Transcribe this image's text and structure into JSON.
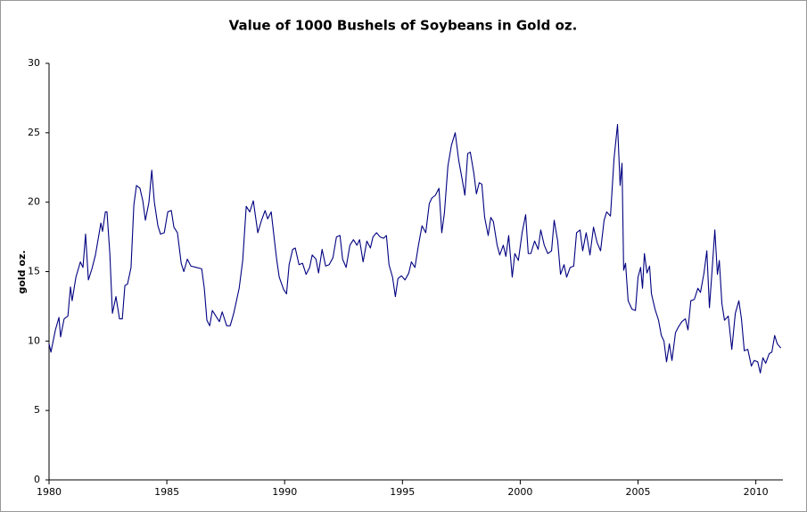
{
  "chart_data": {
    "type": "line",
    "title": "Value of 1000 Bushels of Soybeans in Gold oz.",
    "y_label": "gold oz.",
    "xlim": [
      1980,
      2011.15
    ],
    "xticks": [
      1980,
      1985,
      1990,
      1995,
      2000,
      2005,
      2010
    ],
    "ylim": [
      0,
      30
    ],
    "yticks": [
      0,
      5,
      10,
      15,
      20,
      25,
      30
    ],
    "grid": false,
    "series": [
      {
        "name": "Soybeans in gold",
        "color": "#000080",
        "x": [
          1980.0,
          1980.08,
          1980.27,
          1980.42,
          1980.49,
          1980.64,
          1980.8,
          1980.91,
          1980.98,
          1981.14,
          1981.33,
          1981.44,
          1981.55,
          1981.67,
          1981.82,
          1981.97,
          1982.2,
          1982.27,
          1982.39,
          1982.46,
          1982.58,
          1982.69,
          1982.84,
          1982.99,
          1983.11,
          1983.22,
          1983.33,
          1983.48,
          1983.6,
          1983.71,
          1983.86,
          1983.98,
          1984.09,
          1984.24,
          1984.36,
          1984.47,
          1984.62,
          1984.73,
          1984.89,
          1985.04,
          1985.19,
          1985.3,
          1985.45,
          1985.61,
          1985.72,
          1985.87,
          1986.02,
          1986.25,
          1986.48,
          1986.59,
          1986.7,
          1986.82,
          1986.93,
          1987.08,
          1987.23,
          1987.35,
          1987.54,
          1987.69,
          1987.84,
          1988.07,
          1988.22,
          1988.37,
          1988.52,
          1988.67,
          1988.86,
          1989.02,
          1989.17,
          1989.28,
          1989.43,
          1989.55,
          1989.66,
          1989.77,
          1989.96,
          1990.08,
          1990.19,
          1990.34,
          1990.45,
          1990.61,
          1990.76,
          1990.91,
          1991.06,
          1991.17,
          1991.33,
          1991.44,
          1991.59,
          1991.74,
          1991.89,
          1992.05,
          1992.2,
          1992.35,
          1992.46,
          1992.61,
          1992.77,
          1992.92,
          1993.07,
          1993.18,
          1993.33,
          1993.49,
          1993.64,
          1993.75,
          1993.9,
          1994.05,
          1994.2,
          1994.32,
          1994.43,
          1994.58,
          1994.7,
          1994.81,
          1994.96,
          1995.11,
          1995.27,
          1995.38,
          1995.53,
          1995.68,
          1995.83,
          1995.99,
          1996.14,
          1996.25,
          1996.4,
          1996.55,
          1996.67,
          1996.78,
          1996.93,
          1997.08,
          1997.24,
          1997.39,
          1997.54,
          1997.65,
          1997.77,
          1997.88,
          1998.03,
          1998.14,
          1998.26,
          1998.37,
          1998.49,
          1998.64,
          1998.75,
          1998.86,
          1999.02,
          1999.13,
          1999.28,
          1999.39,
          1999.51,
          1999.66,
          1999.77,
          1999.92,
          2000.08,
          2000.23,
          2000.34,
          2000.45,
          2000.61,
          2000.76,
          2000.87,
          2001.02,
          2001.17,
          2001.33,
          2001.44,
          2001.59,
          2001.71,
          2001.86,
          2001.97,
          2002.12,
          2002.27,
          2002.39,
          2002.54,
          2002.65,
          2002.8,
          2002.96,
          2003.11,
          2003.26,
          2003.41,
          2003.56,
          2003.67,
          2003.83,
          2003.98,
          2004.13,
          2004.24,
          2004.32,
          2004.39,
          2004.47,
          2004.58,
          2004.74,
          2004.89,
          2005.0,
          2005.11,
          2005.19,
          2005.27,
          2005.38,
          2005.49,
          2005.57,
          2005.72,
          2005.87,
          2005.99,
          2006.1,
          2006.21,
          2006.33,
          2006.44,
          2006.59,
          2006.71,
          2006.86,
          2007.01,
          2007.12,
          2007.24,
          2007.39,
          2007.54,
          2007.65,
          2007.8,
          2007.92,
          2008.03,
          2008.14,
          2008.26,
          2008.37,
          2008.45,
          2008.56,
          2008.67,
          2008.83,
          2008.98,
          2009.13,
          2009.28,
          2009.39,
          2009.51,
          2009.66,
          2009.81,
          2009.93,
          2010.08,
          2010.19,
          2010.3,
          2010.42,
          2010.57,
          2010.68,
          2010.8,
          2010.91,
          2011.06
        ],
        "values": [
          9.8,
          9.2,
          10.8,
          11.7,
          10.3,
          11.6,
          11.8,
          13.9,
          12.9,
          14.6,
          15.7,
          15.3,
          17.7,
          14.4,
          15.2,
          16.2,
          18.5,
          17.9,
          19.3,
          19.3,
          16.3,
          12.0,
          13.2,
          11.6,
          11.6,
          14.0,
          14.1,
          15.3,
          19.8,
          21.2,
          21.0,
          20.1,
          18.7,
          20.0,
          22.3,
          20.0,
          18.3,
          17.7,
          17.8,
          19.3,
          19.4,
          18.2,
          17.8,
          15.6,
          15.0,
          15.9,
          15.4,
          15.3,
          15.2,
          13.8,
          11.5,
          11.1,
          12.2,
          11.8,
          11.4,
          12.1,
          11.1,
          11.1,
          12.0,
          13.8,
          15.8,
          19.7,
          19.3,
          20.1,
          17.8,
          18.7,
          19.4,
          18.8,
          19.3,
          17.5,
          15.9,
          14.6,
          13.7,
          13.4,
          15.5,
          16.6,
          16.7,
          15.5,
          15.6,
          14.8,
          15.3,
          16.2,
          15.9,
          14.9,
          16.6,
          15.4,
          15.5,
          16.0,
          17.5,
          17.6,
          15.9,
          15.3,
          16.9,
          17.3,
          16.9,
          17.3,
          15.7,
          17.2,
          16.7,
          17.5,
          17.8,
          17.5,
          17.4,
          17.6,
          15.5,
          14.6,
          13.2,
          14.5,
          14.7,
          14.4,
          14.9,
          15.7,
          15.3,
          16.9,
          18.3,
          17.8,
          19.9,
          20.3,
          20.5,
          21.0,
          17.8,
          19.2,
          22.6,
          24.1,
          25.0,
          23.0,
          21.6,
          20.5,
          23.5,
          23.6,
          22.1,
          20.6,
          21.4,
          21.3,
          18.9,
          17.6,
          18.9,
          18.6,
          16.9,
          16.2,
          16.9,
          16.1,
          17.6,
          14.6,
          16.3,
          15.8,
          17.8,
          19.1,
          16.3,
          16.3,
          17.2,
          16.6,
          18.0,
          16.9,
          16.3,
          16.5,
          18.7,
          17.2,
          14.8,
          15.5,
          14.6,
          15.3,
          15.4,
          17.8,
          18.0,
          16.5,
          17.8,
          16.2,
          18.2,
          17.1,
          16.5,
          18.7,
          19.3,
          19.0,
          23.1,
          25.6,
          21.2,
          22.8,
          15.1,
          15.6,
          12.9,
          12.3,
          12.2,
          14.6,
          15.3,
          13.8,
          16.3,
          14.9,
          15.4,
          13.4,
          12.3,
          11.5,
          10.4,
          10.0,
          8.5,
          9.8,
          8.6,
          10.6,
          11.0,
          11.4,
          11.6,
          10.8,
          12.9,
          13.0,
          13.8,
          13.5,
          14.9,
          16.5,
          12.4,
          15.0,
          18.0,
          14.8,
          15.8,
          12.7,
          11.5,
          11.8,
          9.4,
          12.0,
          12.9,
          11.6,
          9.3,
          9.4,
          8.2,
          8.6,
          8.5,
          7.7,
          8.8,
          8.4,
          9.1,
          9.2,
          10.4,
          9.8,
          9.5
        ]
      }
    ]
  }
}
